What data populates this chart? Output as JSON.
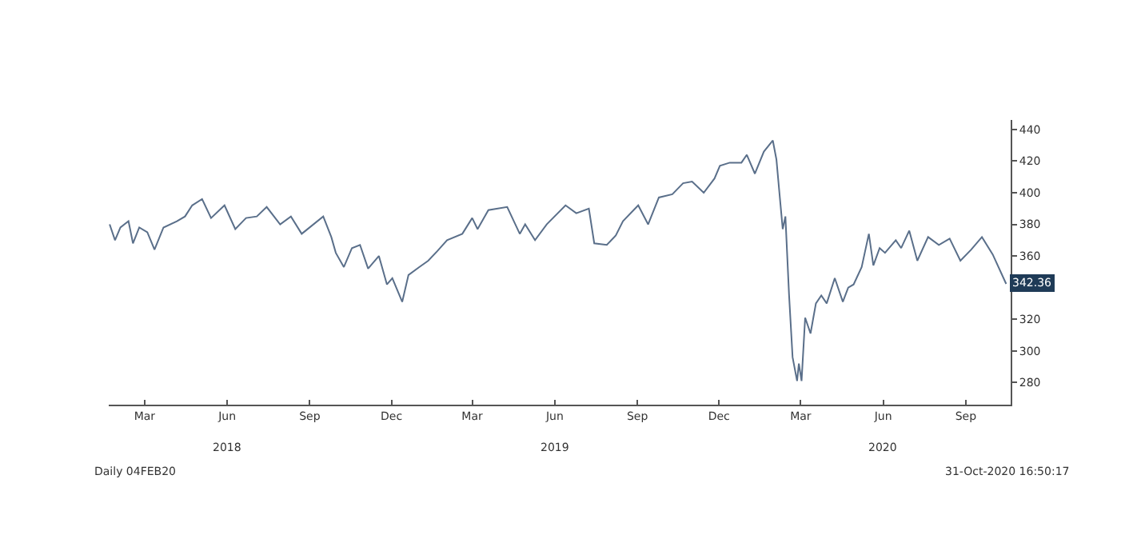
{
  "chart_data": {
    "type": "line",
    "x": [
      "2018-02-04",
      "2018-02-10",
      "2018-02-16",
      "2018-02-25",
      "2018-03-02",
      "2018-03-09",
      "2018-03-18",
      "2018-03-26",
      "2018-04-05",
      "2018-04-20",
      "2018-04-29",
      "2018-05-07",
      "2018-05-18",
      "2018-05-28",
      "2018-06-12",
      "2018-06-24",
      "2018-07-06",
      "2018-07-18",
      "2018-07-29",
      "2018-08-13",
      "2018-08-25",
      "2018-09-06",
      "2018-09-30",
      "2018-10-09",
      "2018-10-14",
      "2018-10-23",
      "2018-11-01",
      "2018-11-10",
      "2018-11-19",
      "2018-12-01",
      "2018-12-10",
      "2018-12-16",
      "2018-12-27",
      "2019-01-03",
      "2019-01-15",
      "2019-01-25",
      "2019-02-04",
      "2019-02-15",
      "2019-03-04",
      "2019-03-15",
      "2019-03-21",
      "2019-04-02",
      "2019-04-23",
      "2019-05-07",
      "2019-05-13",
      "2019-05-24",
      "2019-06-06",
      "2019-06-27",
      "2019-07-09",
      "2019-07-23",
      "2019-07-29",
      "2019-08-12",
      "2019-08-22",
      "2019-08-30",
      "2019-09-16",
      "2019-09-27",
      "2019-10-09",
      "2019-10-24",
      "2019-11-05",
      "2019-11-15",
      "2019-11-28",
      "2019-12-10",
      "2019-12-16",
      "2019-12-27",
      "2020-01-09",
      "2020-01-15",
      "2020-01-24",
      "2020-02-03",
      "2020-02-13",
      "2020-02-17",
      "2020-02-20",
      "2020-02-24",
      "2020-02-27",
      "2020-03-02",
      "2020-03-06",
      "2020-03-11",
      "2020-03-13",
      "2020-03-16",
      "2020-03-20",
      "2020-03-26",
      "2020-04-01",
      "2020-04-07",
      "2020-04-13",
      "2020-04-22",
      "2020-05-01",
      "2020-05-07",
      "2020-05-13",
      "2020-05-22",
      "2020-05-30",
      "2020-06-04",
      "2020-06-11",
      "2020-06-17",
      "2020-06-29",
      "2020-07-05",
      "2020-07-14",
      "2020-07-23",
      "2020-08-04",
      "2020-08-16",
      "2020-08-28",
      "2020-09-09",
      "2020-09-21",
      "2020-10-03",
      "2020-10-15",
      "2020-10-30"
    ],
    "series": [
      {
        "color": "#5a6f8a",
        "values": [
          380,
          370,
          378,
          382,
          368,
          378,
          375,
          364,
          378,
          382,
          385,
          392,
          396,
          384,
          392,
          377,
          384,
          385,
          391,
          380,
          385,
          374,
          385,
          372,
          362,
          353,
          365,
          367,
          352,
          360,
          342,
          346,
          331,
          348,
          353,
          357,
          363,
          370,
          374,
          384,
          377,
          389,
          391,
          374,
          380,
          370,
          380,
          392,
          387,
          390,
          368,
          367,
          373,
          382,
          392,
          380,
          397,
          399,
          406,
          407,
          400,
          409,
          417,
          419,
          419,
          424,
          412,
          426,
          433,
          421,
          402,
          377,
          385,
          336,
          296,
          281,
          292,
          281,
          321,
          311,
          330,
          335,
          330,
          346,
          331,
          340,
          342,
          353,
          374,
          354,
          365,
          362,
          370,
          365,
          376,
          357,
          372,
          367,
          371,
          357,
          364,
          372,
          361,
          342.36
        ]
      }
    ],
    "xlim": [
      "2018-02-03",
      "2020-11-04"
    ],
    "xticks": [
      {
        "value": "2018-03-15",
        "label": "Mar"
      },
      {
        "value": "2018-06-15",
        "label": "Jun"
      },
      {
        "value": "2018-09-15",
        "label": "Sep"
      },
      {
        "value": "2018-12-15",
        "label": "Dec"
      },
      {
        "value": "2019-03-15",
        "label": "Mar"
      },
      {
        "value": "2019-06-15",
        "label": "Jun"
      },
      {
        "value": "2019-09-15",
        "label": "Sep"
      },
      {
        "value": "2019-12-15",
        "label": "Dec"
      },
      {
        "value": "2020-03-15",
        "label": "Mar"
      },
      {
        "value": "2020-06-15",
        "label": "Jun"
      },
      {
        "value": "2020-09-15",
        "label": "Sep"
      }
    ],
    "ylim": [
      266,
      446
    ],
    "yticks": [
      280,
      300,
      320,
      {
        "value": 340,
        "label": null
      },
      360,
      380,
      400,
      420,
      440
    ],
    "legend": false,
    "marker": "none",
    "line_style": "solid",
    "annotations": [
      "2018",
      "2019",
      "2020",
      {
        "text": "342.36",
        "x": "2020-10-30",
        "y": 342.36
      },
      "Daily 04FEB20",
      "31-Oct-2020 16:50:17"
    ]
  }
}
